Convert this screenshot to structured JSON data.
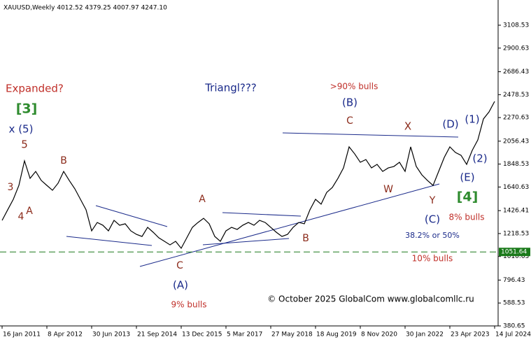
{
  "chart_data": {
    "type": "line",
    "title": "XAUUSD,Weekly  4012.52 4379.25 4007.97 4247.10",
    "categories": [
      "16 Jan 2011",
      null,
      null,
      null,
      null,
      null,
      null,
      null,
      "8 Apr 2012",
      null,
      null,
      null,
      null,
      null,
      null,
      null,
      "30 Jun 2013",
      null,
      null,
      null,
      null,
      null,
      null,
      null,
      "21 Sep 2014",
      null,
      null,
      null,
      null,
      null,
      null,
      null,
      "13 Dec 2015",
      null,
      null,
      null,
      null,
      null,
      null,
      null,
      "5 Mar 2017",
      null,
      null,
      null,
      null,
      null,
      null,
      null,
      "27 May 2018",
      null,
      null,
      null,
      null,
      null,
      null,
      null,
      "18 Aug 2019",
      null,
      null,
      null,
      null,
      null,
      null,
      null,
      "8 Nov 2020",
      null,
      null,
      null,
      null,
      null,
      null,
      null,
      "30 Jan 2022",
      null,
      null,
      null,
      null,
      null,
      null,
      null,
      "23 Apr 2023",
      null,
      null,
      null,
      null,
      null,
      null,
      null,
      "14 Jul 2024"
    ],
    "values": [
      1338,
      1434,
      1529,
      1655,
      1878,
      1719,
      1782,
      1700,
      1655,
      1611,
      1675,
      1782,
      1700,
      1624,
      1529,
      1434,
      1243,
      1319,
      1294,
      1243,
      1338,
      1294,
      1307,
      1243,
      1211,
      1192,
      1275,
      1230,
      1180,
      1148,
      1116,
      1148,
      1085,
      1180,
      1275,
      1319,
      1357,
      1307,
      1192,
      1148,
      1243,
      1275,
      1256,
      1294,
      1319,
      1294,
      1338,
      1319,
      1275,
      1230,
      1192,
      1211,
      1275,
      1319,
      1307,
      1434,
      1529,
      1485,
      1592,
      1636,
      1719,
      1814,
      2005,
      1941,
      1865,
      1890,
      1814,
      1846,
      1782,
      1814,
      1827,
      1865,
      1782,
      2005,
      1827,
      1751,
      1700,
      1655,
      1782,
      1909,
      2005,
      1954,
      1928,
      1846,
      1973,
      2068,
      2258,
      2322,
      2417
    ],
    "color": "#000000",
    "ylim": [
      380.65,
      3318
    ],
    "yticks": [
      380.65,
      588.53,
      796.43,
      1010.63,
      1218.53,
      1426.41,
      1640.63,
      1848.53,
      2056.43,
      2270.63,
      2478.53,
      2686.43,
      2900.63,
      3108.53
    ],
    "price_line": {
      "value": 1051.64,
      "color": "#1a7a1a"
    },
    "annotations": [
      {
        "text": "Expanded?",
        "color": "#c0302a"
      },
      {
        "text": "[3]",
        "color": "#2e8b2e"
      },
      {
        "text": "x (5)",
        "color": "#1a2a8a"
      },
      {
        "text": "5",
        "color": "#8b2a1a"
      },
      {
        "text": "3",
        "color": "#8b2a1a"
      },
      {
        "text": "4",
        "color": "#8b2a1a"
      },
      {
        "text": "A",
        "color": "#8b2a1a"
      },
      {
        "text": "B",
        "color": "#8b2a1a"
      },
      {
        "text": "Triangl???",
        "color": "#1a2a8a"
      },
      {
        "text": ">90% bulls",
        "color": "#c0302a"
      },
      {
        "text": "(B)",
        "color": "#1a2a8a"
      },
      {
        "text": "C",
        "color": "#8b2a1a"
      },
      {
        "text": "X",
        "color": "#8b2a1a"
      },
      {
        "text": "(D)",
        "color": "#1a2a8a"
      },
      {
        "text": "(1)",
        "color": "#1a2a8a"
      },
      {
        "text": "(2)",
        "color": "#1a2a8a"
      },
      {
        "text": "(E)",
        "color": "#1a2a8a"
      },
      {
        "text": "[4]",
        "color": "#2e8b2e"
      },
      {
        "text": "W",
        "color": "#8b2a1a"
      },
      {
        "text": "Y",
        "color": "#8b2a1a"
      },
      {
        "text": "8% bulls",
        "color": "#c0302a"
      },
      {
        "text": "(C)",
        "color": "#1a2a8a"
      },
      {
        "text": "38.2% or 50%",
        "color": "#1a2a8a"
      },
      {
        "text": "10% bulls",
        "color": "#c0302a"
      },
      {
        "text": "A",
        "color": "#8b2a1a"
      },
      {
        "text": "B",
        "color": "#8b2a1a"
      },
      {
        "text": "C",
        "color": "#8b2a1a"
      },
      {
        "text": "(A)",
        "color": "#1a2a8a"
      },
      {
        "text": "9% bulls",
        "color": "#c0302a"
      },
      {
        "text": "© October 2025 GlobalCom www.globalcomllc.ru",
        "color": "#000000"
      }
    ]
  }
}
